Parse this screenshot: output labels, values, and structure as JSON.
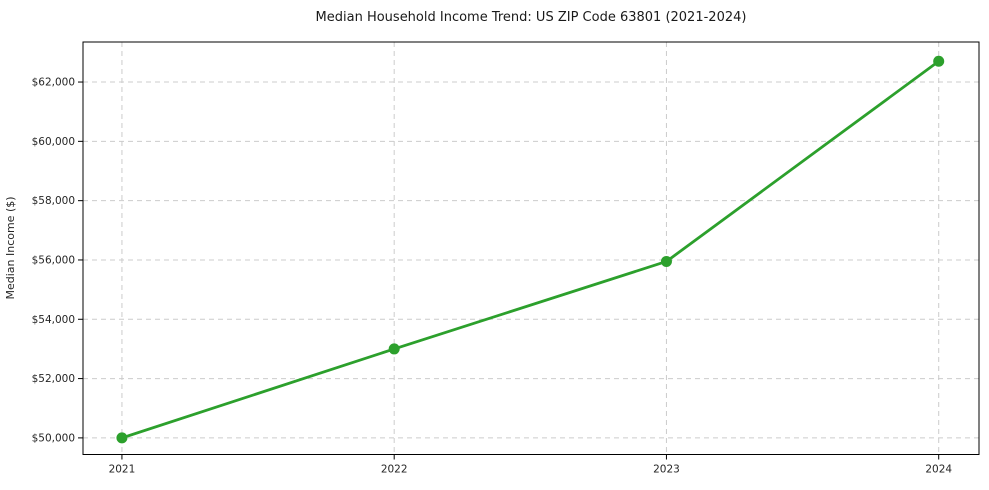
{
  "figure": {
    "background": "#ffffff"
  },
  "chart_data": {
    "type": "line",
    "title": "Median Household Income Trend: US ZIP Code 63801 (2021-2024)",
    "xlabel": "",
    "ylabel": "Median Income ($)",
    "categories": [
      "2021",
      "2022",
      "2023",
      "2024"
    ],
    "x": [
      2021,
      2022,
      2023,
      2024
    ],
    "series": [
      {
        "name": "Median Income ($)",
        "values": [
          50000,
          53000,
          55950,
          62700
        ],
        "color": "#2ca02c",
        "line_width": 2.8,
        "marker": "circle",
        "marker_diameter": 11
      }
    ],
    "yticks": [
      50000,
      52000,
      54000,
      56000,
      58000,
      60000,
      62000
    ],
    "ytick_labels": [
      "$50,000",
      "$52,000",
      "$54,000",
      "$56,000",
      "$58,000",
      "$60,000",
      "$62,000"
    ],
    "xlim": [
      2020.857,
      2024.148
    ],
    "ylim": [
      49440,
      63350
    ],
    "grid": true,
    "grid_style": "dashed",
    "grid_color": "#cccccc",
    "frame_color": "#000000",
    "legend_position": "none"
  }
}
